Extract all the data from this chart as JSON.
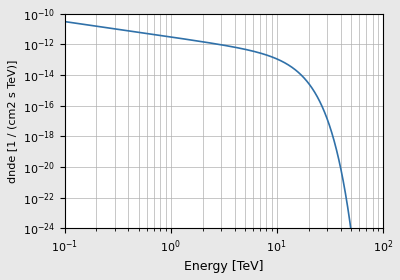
{
  "amplitude": 3e-12,
  "index": 1.0,
  "e_ref": 1.0,
  "e_cutoff": 10.0,
  "alpha": 2.0,
  "e_min": 0.1,
  "e_max": 100.0,
  "n_points": 2000,
  "xlim": [
    0.1,
    100.0
  ],
  "ylim": [
    1e-24,
    1e-10
  ],
  "xlabel": "Energy [TeV]",
  "ylabel": "dnde [1 / (cm2 s TeV)]",
  "line_color": "#3071a9",
  "line_width": 1.2,
  "grid_color": "#b0b0b0",
  "grid_linewidth": 0.5,
  "background_color": "#e8e8e8",
  "axes_background": "#ffffff",
  "figsize": [
    4.0,
    2.8
  ],
  "dpi": 100
}
